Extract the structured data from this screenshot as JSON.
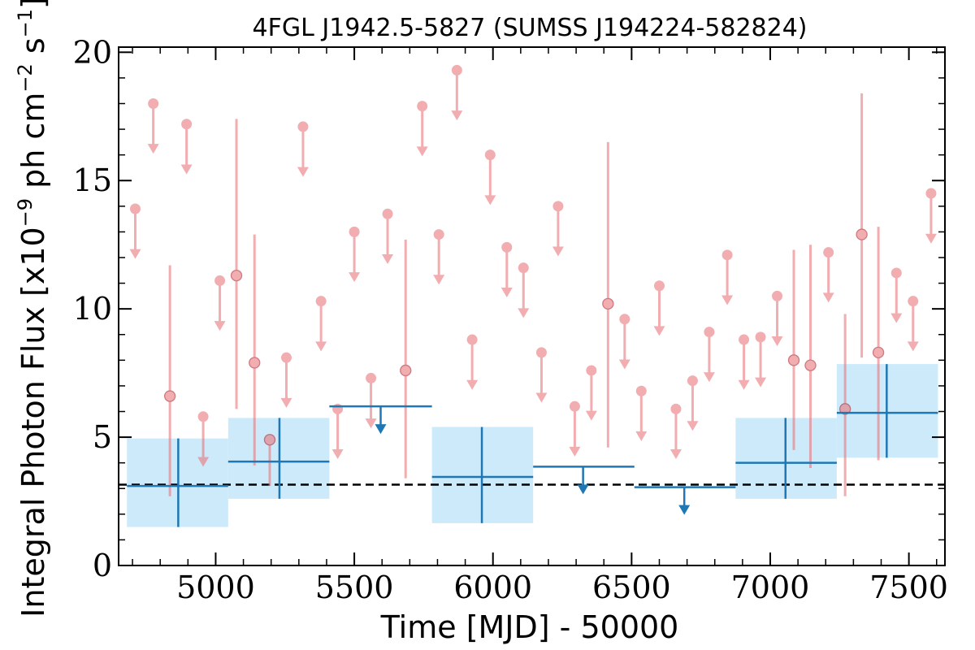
{
  "chart_data": {
    "type": "scatter",
    "title": "4FGL J1942.5-5827 (SUMSS J194224-582824)",
    "xlabel": "Time [MJD] - 50000",
    "ylabel": "Integral Photon Flux [x10",
    "ylabel_exp1": "−9",
    "ylabel_mid": " ph cm",
    "ylabel_exp2": "−2",
    "ylabel_mid2": " s",
    "ylabel_exp3": "−1",
    "ylabel_end": "]",
    "xlim": [
      4650,
      7630
    ],
    "ylim": [
      0,
      20.2
    ],
    "xticks": [
      5000,
      5500,
      6000,
      6500,
      7000,
      7500
    ],
    "yticks": [
      0,
      5,
      10,
      15,
      20
    ],
    "mean_flux": 3.15,
    "colors": {
      "fine": "#e8777d",
      "coarse": "#1f77b4",
      "band": "#cdeafa",
      "mean": "#000000"
    },
    "series": [
      {
        "name": "fine_upper_limits",
        "points": [
          {
            "x": 4710,
            "y": 13.9
          },
          {
            "x": 4775,
            "y": 18.0
          },
          {
            "x": 4895,
            "y": 17.2
          },
          {
            "x": 4955,
            "y": 5.8
          },
          {
            "x": 5015,
            "y": 11.1
          },
          {
            "x": 5255,
            "y": 8.1
          },
          {
            "x": 5315,
            "y": 17.1
          },
          {
            "x": 5380,
            "y": 10.3
          },
          {
            "x": 5440,
            "y": 6.1
          },
          {
            "x": 5500,
            "y": 13.0
          },
          {
            "x": 5560,
            "y": 7.3
          },
          {
            "x": 5620,
            "y": 13.7
          },
          {
            "x": 5745,
            "y": 17.9
          },
          {
            "x": 5805,
            "y": 12.9
          },
          {
            "x": 5870,
            "y": 19.3
          },
          {
            "x": 5925,
            "y": 8.8
          },
          {
            "x": 5990,
            "y": 16.0
          },
          {
            "x": 6050,
            "y": 12.4
          },
          {
            "x": 6110,
            "y": 11.6
          },
          {
            "x": 6175,
            "y": 8.3
          },
          {
            "x": 6235,
            "y": 14.0
          },
          {
            "x": 6295,
            "y": 6.2
          },
          {
            "x": 6355,
            "y": 7.6
          },
          {
            "x": 6475,
            "y": 9.6
          },
          {
            "x": 6535,
            "y": 6.8
          },
          {
            "x": 6600,
            "y": 10.9
          },
          {
            "x": 6660,
            "y": 6.1
          },
          {
            "x": 6720,
            "y": 7.2
          },
          {
            "x": 6780,
            "y": 9.1
          },
          {
            "x": 6845,
            "y": 12.1
          },
          {
            "x": 6905,
            "y": 8.8
          },
          {
            "x": 6965,
            "y": 8.9
          },
          {
            "x": 7025,
            "y": 10.5
          },
          {
            "x": 7210,
            "y": 12.2
          },
          {
            "x": 7455,
            "y": 11.4
          },
          {
            "x": 7515,
            "y": 10.3
          },
          {
            "x": 7580,
            "y": 14.5
          }
        ]
      },
      {
        "name": "fine_detections",
        "points": [
          {
            "x": 4835,
            "y": 6.6,
            "lo": 2.7,
            "hi": 11.7
          },
          {
            "x": 5075,
            "y": 11.3,
            "lo": 6.1,
            "hi": 17.4
          },
          {
            "x": 5140,
            "y": 7.9,
            "lo": 3.9,
            "hi": 12.9
          },
          {
            "x": 5195,
            "y": 4.9,
            "lo": 3.1,
            "hi": 4.9
          },
          {
            "x": 5685,
            "y": 7.6,
            "lo": 3.4,
            "hi": 12.7
          },
          {
            "x": 6415,
            "y": 10.2,
            "lo": 4.6,
            "hi": 16.5
          },
          {
            "x": 7085,
            "y": 8.0,
            "lo": 4.5,
            "hi": 12.3
          },
          {
            "x": 7145,
            "y": 7.8,
            "lo": 3.8,
            "hi": 12.5
          },
          {
            "x": 7270,
            "y": 6.1,
            "lo": 2.7,
            "hi": 9.8
          },
          {
            "x": 7330,
            "y": 12.9,
            "lo": 8.1,
            "hi": 18.4
          },
          {
            "x": 7390,
            "y": 8.3,
            "lo": 4.1,
            "hi": 13.2
          }
        ]
      },
      {
        "name": "coarse_detections",
        "bins": [
          {
            "x": 4865,
            "x0": 4680,
            "x1": 5045,
            "y": 3.1,
            "lo": 1.5,
            "hi": 4.95
          },
          {
            "x": 5230,
            "x0": 5045,
            "x1": 5410,
            "y": 4.05,
            "lo": 2.6,
            "hi": 5.75
          },
          {
            "x": 5960,
            "x0": 5780,
            "x1": 6145,
            "y": 3.45,
            "lo": 1.65,
            "hi": 5.4
          },
          {
            "x": 7055,
            "x0": 6875,
            "x1": 7240,
            "y": 4.0,
            "lo": 2.6,
            "hi": 5.75
          },
          {
            "x": 7420,
            "x0": 7240,
            "x1": 7605,
            "y": 5.95,
            "lo": 4.2,
            "hi": 7.85
          }
        ]
      },
      {
        "name": "coarse_upper_limits",
        "bins": [
          {
            "x": 5595,
            "x0": 5410,
            "x1": 5780,
            "y": 6.2
          },
          {
            "x": 6325,
            "x0": 6145,
            "x1": 6510,
            "y": 3.85
          },
          {
            "x": 6690,
            "x0": 6510,
            "x1": 6875,
            "y": 3.05
          }
        ]
      }
    ]
  }
}
